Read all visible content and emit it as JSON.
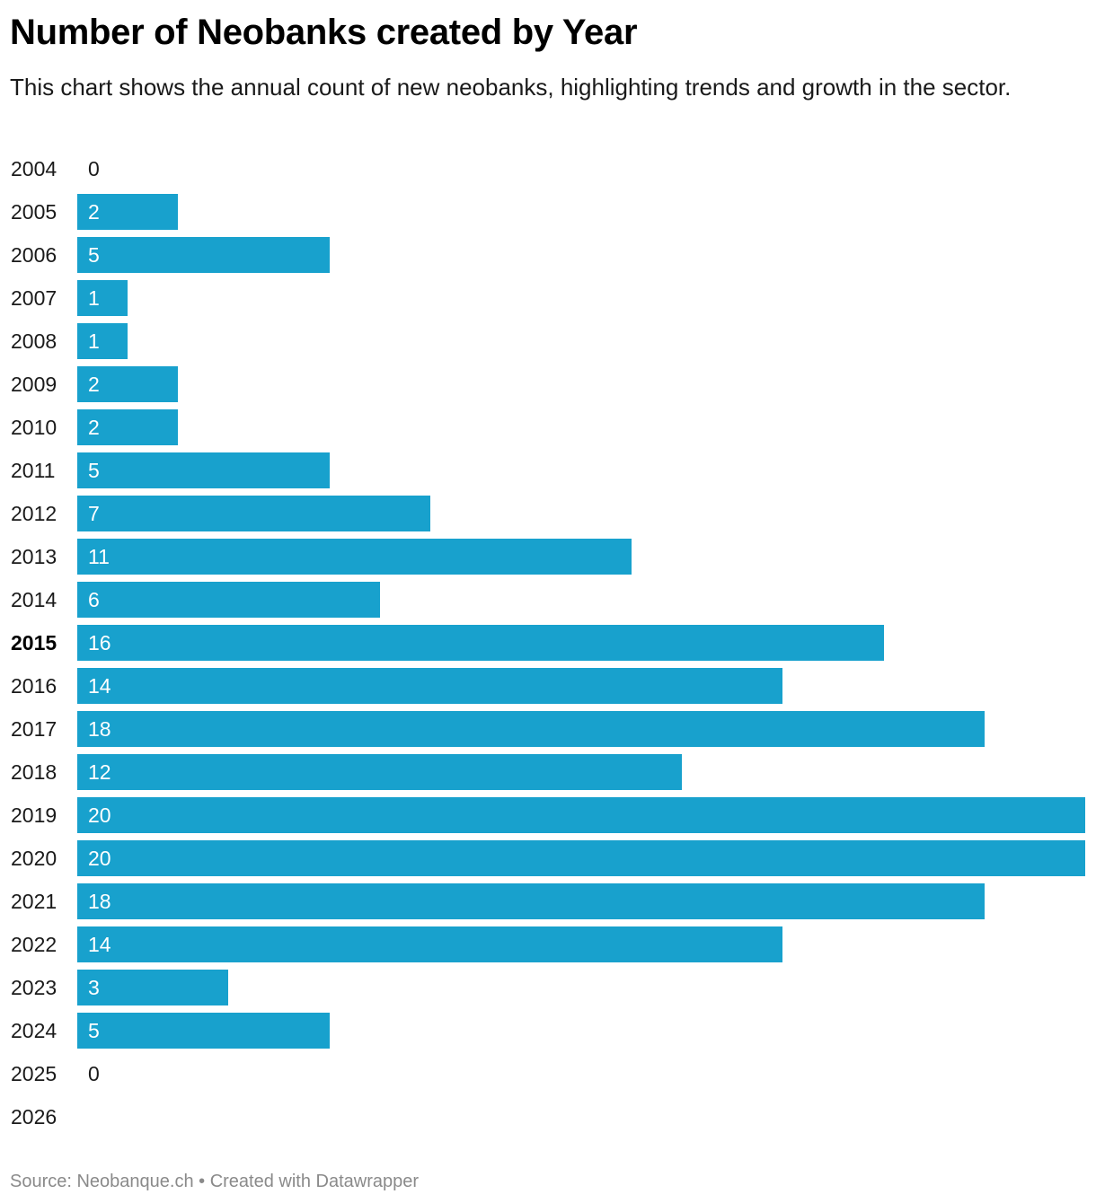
{
  "chart_data": {
    "type": "bar",
    "orientation": "horizontal",
    "title": "Number of Neobanks created by Year",
    "subtitle": "This chart shows the annual count of new neobanks, highlighting trends and growth in the sector.",
    "categories": [
      "2004",
      "2005",
      "2006",
      "2007",
      "2008",
      "2009",
      "2010",
      "2011",
      "2012",
      "2013",
      "2014",
      "2015",
      "2016",
      "2017",
      "2018",
      "2019",
      "2020",
      "2021",
      "2022",
      "2023",
      "2024",
      "2025",
      "2026"
    ],
    "values": [
      0,
      2,
      5,
      1,
      1,
      2,
      2,
      5,
      7,
      11,
      6,
      16,
      14,
      18,
      12,
      20,
      20,
      18,
      14,
      3,
      5,
      0,
      null
    ],
    "highlighted_category": "2015",
    "xlim": [
      0,
      20
    ],
    "bar_color": "#18a1cd",
    "grid": false,
    "legend": "none"
  },
  "footer": {
    "text": "Source: Neobanque.ch • Created with Datawrapper"
  }
}
